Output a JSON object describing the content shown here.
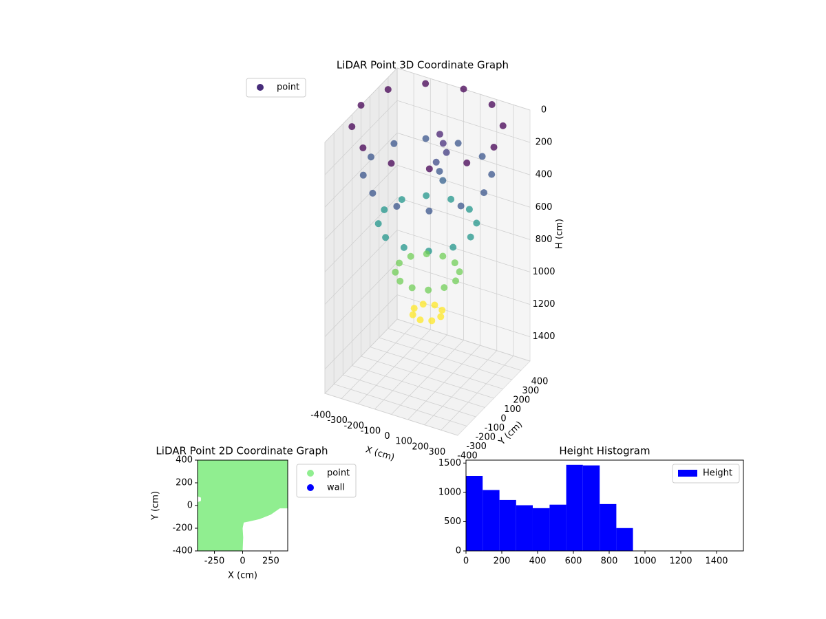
{
  "chart_data": [
    {
      "type": "scatter3d",
      "title": "LiDAR Point 3D Coordinate Graph",
      "xlabel": "X (cm)",
      "ylabel": "Y (cm)",
      "zlabel": "H (cm)",
      "xlim": [
        -400,
        400
      ],
      "ylim": [
        -400,
        400
      ],
      "zlim": [
        0,
        1550
      ],
      "z_inverted": true,
      "xticks": [
        -400,
        -300,
        -200,
        -100,
        0,
        100,
        200,
        300
      ],
      "yticks": [
        -400,
        -300,
        -200,
        -100,
        0,
        100,
        200,
        300,
        400
      ],
      "zticks": [
        0,
        200,
        400,
        600,
        800,
        1000,
        1200,
        1400
      ],
      "legend": "upper left",
      "grid": true,
      "colormap": "viridis",
      "series": [
        {
          "name": "point",
          "color": "#472c7a",
          "x": [
            400,
            346,
            200,
            0,
            -200,
            -346,
            -400,
            -346,
            -200,
            0,
            200,
            346,
            340,
            294,
            170,
            0,
            -170,
            -294,
            -340,
            -294,
            -170,
            0,
            170,
            294,
            260,
            225,
            130,
            0,
            -130,
            -225,
            -260,
            -225,
            -130,
            0,
            130,
            225,
            170,
            147,
            85,
            0,
            -85,
            -147,
            -170,
            -147,
            -85,
            0,
            85,
            147,
            80,
            57,
            0,
            -57,
            -80,
            -57,
            0,
            57,
            20,
            40,
            60,
            20,
            40,
            60
          ],
          "y": [
            0,
            200,
            346,
            400,
            346,
            200,
            0,
            -200,
            -346,
            -400,
            -346,
            -200,
            0,
            170,
            294,
            340,
            294,
            170,
            0,
            -170,
            -294,
            -340,
            -294,
            -170,
            0,
            130,
            225,
            260,
            225,
            130,
            0,
            -130,
            -225,
            -260,
            -225,
            -130,
            0,
            85,
            147,
            170,
            147,
            85,
            0,
            -85,
            -147,
            -170,
            -147,
            -85,
            0,
            57,
            80,
            57,
            0,
            -57,
            -80,
            -57,
            100,
            100,
            100,
            60,
            60,
            60
          ],
          "h": [
            0,
            0,
            0,
            0,
            0,
            0,
            0,
            0,
            0,
            0,
            0,
            0,
            300,
            300,
            300,
            300,
            300,
            300,
            300,
            300,
            300,
            300,
            300,
            300,
            600,
            600,
            600,
            600,
            600,
            600,
            600,
            600,
            600,
            600,
            600,
            600,
            900,
            900,
            900,
            900,
            900,
            900,
            900,
            900,
            900,
            900,
            900,
            900,
            1150,
            1150,
            1150,
            1150,
            1150,
            1150,
            1150,
            1150,
            100,
            150,
            200,
            250,
            300,
            350
          ]
        }
      ]
    },
    {
      "type": "area2d",
      "title": "LiDAR Point 2D Coordinate Graph",
      "xlabel": "X (cm)",
      "ylabel": "Y (cm)",
      "xlim": [
        -400,
        400
      ],
      "ylim": [
        -400,
        400
      ],
      "xticks": [
        -250,
        0,
        250
      ],
      "yticks": [
        -400,
        -200,
        0,
        200,
        400
      ],
      "legend": "outside right",
      "series": [
        {
          "name": "point",
          "color": "#90ee90",
          "x": [
            -400,
            400,
            400,
            330,
            250,
            150,
            60,
            10,
            0,
            5,
            0,
            -400,
            -400,
            -370,
            -370,
            -400
          ],
          "y": [
            400,
            400,
            -25,
            -25,
            -80,
            -120,
            -140,
            -150,
            -200,
            -280,
            -400,
            -400,
            30,
            40,
            70,
            80
          ]
        },
        {
          "name": "wall",
          "color": "#0000ff",
          "x": [],
          "y": []
        }
      ]
    },
    {
      "type": "histogram",
      "title": "Height Histogram",
      "xlim": [
        0,
        1550
      ],
      "ylim": [
        0,
        1550
      ],
      "xticks": [
        0,
        200,
        400,
        600,
        800,
        1000,
        1200,
        1400
      ],
      "yticks": [
        0,
        500,
        1000,
        1500
      ],
      "legend": "upper right",
      "series": [
        {
          "name": "Height",
          "color": "#0000ff",
          "bins": [
            0,
            93,
            187,
            280,
            373,
            467,
            560,
            653,
            747,
            840,
            933
          ],
          "values": [
            1280,
            1040,
            870,
            780,
            730,
            790,
            1470,
            1460,
            800,
            390
          ]
        }
      ]
    }
  ]
}
